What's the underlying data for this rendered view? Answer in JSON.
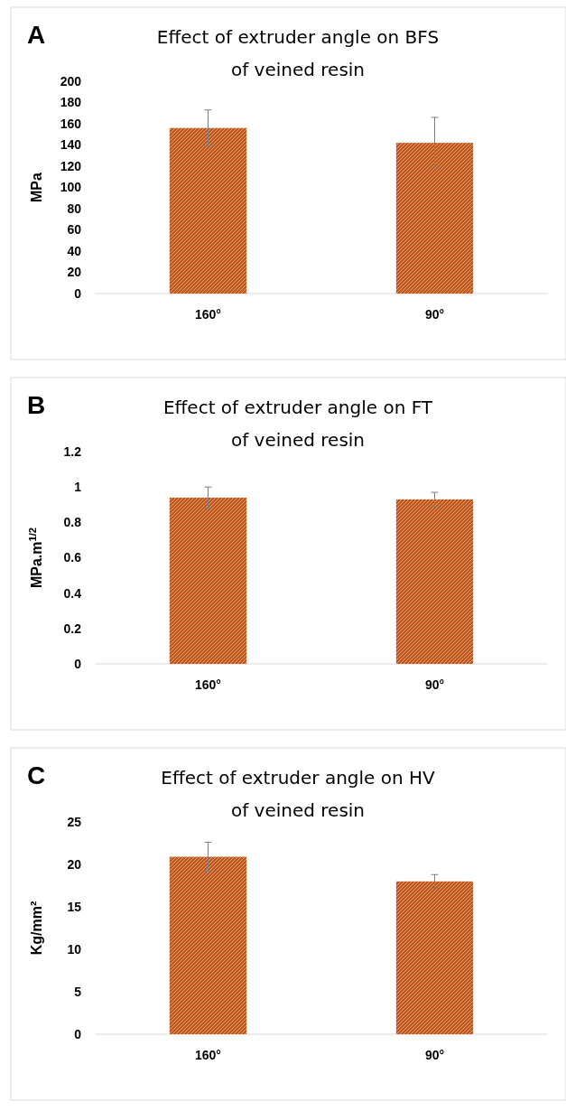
{
  "chart_data": [
    {
      "type": "bar",
      "title": "Effect of extruder angle on BFS of veined resin",
      "annotations": [
        "A"
      ],
      "ylabel": "MPa",
      "categories": [
        "160°",
        "90°"
      ],
      "values": [
        156,
        142
      ],
      "errors": [
        17,
        24
      ],
      "color": "#c0561c",
      "ylim": [
        0,
        200
      ],
      "yticks": [
        0,
        20,
        40,
        60,
        80,
        100,
        120,
        140,
        160,
        180,
        200
      ]
    },
    {
      "type": "bar",
      "title": "Effect of extruder angle on FT of veined resin",
      "annotations": [
        "B"
      ],
      "ylabel": "MPa.m$^{1/2}$",
      "categories": [
        "160°",
        "90°"
      ],
      "values": [
        0.94,
        0.93
      ],
      "errors": [
        0.06,
        0.04
      ],
      "color": "#c0561c",
      "ylim": [
        0,
        1.2
      ],
      "yticks": [
        0,
        0.2,
        0.4,
        0.6,
        0.8,
        1,
        1.2
      ]
    },
    {
      "type": "bar",
      "title": "Effect of extruder angle on HV of veined resin",
      "annotations": [
        "C"
      ],
      "ylabel": "Kg/mm²",
      "categories": [
        "160°",
        "90°"
      ],
      "values": [
        20.9,
        18
      ],
      "errors": [
        1.7,
        0.8
      ],
      "color": "#c0561c",
      "ylim": [
        0,
        25
      ],
      "yticks": [
        0,
        5,
        10,
        15,
        20,
        25
      ]
    }
  ]
}
